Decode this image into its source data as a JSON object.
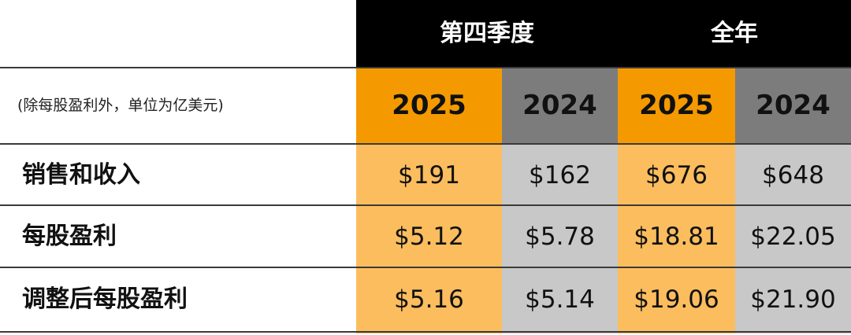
{
  "header": {
    "periods": [
      "第四季度",
      "全年"
    ],
    "units_note": "(除每股盈利外，单位为亿美元)",
    "years": [
      "2025",
      "2024",
      "2025",
      "2024"
    ]
  },
  "rows": [
    {
      "label": "销售和收入",
      "values": [
        "$191",
        "$162",
        "$676",
        "$648"
      ]
    },
    {
      "label": "每股盈利",
      "values": [
        "$5.12",
        "$5.78",
        "$18.81",
        "$22.05"
      ]
    },
    {
      "label": "调整后每股盈利",
      "values": [
        "$5.16",
        "$5.14",
        "$19.06",
        "$21.90"
      ]
    }
  ],
  "colors": {
    "header_bg": "#000000",
    "year_2025_bg": "#f49a00",
    "year_2024_bg": "#7c7c7c",
    "col_2025_bg": "#fbbd5e",
    "col_2024_bg": "#c8c8c8"
  }
}
